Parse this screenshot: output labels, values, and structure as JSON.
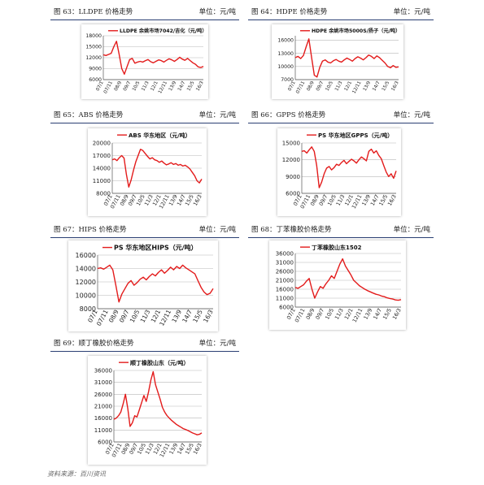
{
  "unit_label": "单位：元/吨",
  "source_note": "资料来源：百川资讯",
  "x_ticks": [
    "07/1",
    "07/11",
    "08/9",
    "09/7",
    "10/5",
    "11/3",
    "12/1",
    "12/11",
    "13/9",
    "14/7",
    "15/5",
    "16/3"
  ],
  "line_color": "#e31b1b",
  "figures": [
    {
      "id": "fig63",
      "caption": "图 63：LLDPE 价格走势",
      "unit": "单位：元/吨",
      "chart_data": {
        "type": "line",
        "title": "",
        "legend": "LLDPE 余姚市场7042/吉化（元/吨）",
        "ylim": [
          6000,
          18000
        ],
        "yticks": [
          6000,
          9000,
          12000,
          15000,
          18000
        ],
        "values": [
          12800,
          12600,
          12900,
          13200,
          15000,
          16500,
          13000,
          9000,
          7500,
          9500,
          11500,
          11800,
          10500,
          10800,
          11000,
          10800,
          11200,
          11500,
          10900,
          10600,
          11000,
          11400,
          11200,
          10800,
          11300,
          11700,
          11400,
          11000,
          11500,
          12100,
          11600,
          11300,
          11800,
          11200,
          10600,
          10200,
          9500,
          9300,
          9600
        ]
      }
    },
    {
      "id": "fig64",
      "caption": "图 64：HDPE 价格走势",
      "unit": "单位：元/吨",
      "chart_data": {
        "type": "line",
        "title": "",
        "legend": "HDPE 余姚市场5000S/扬子（元/吨）",
        "ylim": [
          7000,
          17000
        ],
        "yticks": [
          7000,
          10000,
          13000,
          16000
        ],
        "values": [
          12000,
          12300,
          11800,
          12500,
          14500,
          16300,
          12000,
          8000,
          7600,
          9800,
          11200,
          11500,
          11000,
          10800,
          11300,
          11600,
          11200,
          11000,
          11500,
          11900,
          11600,
          11200,
          11800,
          12200,
          11900,
          11500,
          12000,
          12600,
          12300,
          11800,
          12400,
          12000,
          11400,
          10800,
          10000,
          9700,
          10200,
          9800,
          9900
        ]
      }
    },
    {
      "id": "fig65",
      "caption": "图 65：ABS 价格走势",
      "unit": "单位：元/吨",
      "chart_data": {
        "type": "line",
        "title": "",
        "legend": "ABS 华东地区（元/吨）",
        "ylim": [
          8000,
          20000
        ],
        "yticks": [
          8000,
          11000,
          14000,
          17000,
          20000
        ],
        "values": [
          16000,
          16200,
          15800,
          16500,
          17000,
          16400,
          12500,
          9500,
          11200,
          13500,
          15500,
          17000,
          18500,
          18200,
          17500,
          16800,
          16200,
          16500,
          16000,
          15800,
          15400,
          15700,
          15200,
          14800,
          15000,
          15300,
          14900,
          15100,
          14700,
          14900,
          14500,
          14700,
          14300,
          13800,
          13000,
          12200,
          11000,
          10500,
          11400
        ]
      }
    },
    {
      "id": "fig66",
      "caption": "图 66：GPPS 价格走势",
      "unit": "单位：元/吨",
      "chart_data": {
        "type": "line",
        "title": "",
        "legend": "PS 华东地区GPPS（元/吨）",
        "ylim": [
          6000,
          15000
        ],
        "yticks": [
          6000,
          9000,
          12000,
          15000
        ],
        "values": [
          13500,
          13600,
          13200,
          13800,
          14300,
          13500,
          11000,
          7000,
          8000,
          9500,
          10500,
          10800,
          10200,
          10600,
          11200,
          11000,
          11500,
          11900,
          11300,
          11700,
          12100,
          11800,
          11400,
          12000,
          12500,
          12200,
          11800,
          13500,
          13900,
          13200,
          13600,
          12800,
          12200,
          11000,
          9800,
          9000,
          9500,
          8700,
          10000
        ]
      }
    },
    {
      "id": "fig67",
      "caption": "图 67：HIPS 价格走势",
      "unit": "单位：元/吨",
      "chart_data": {
        "type": "line",
        "title": "",
        "legend": "PS 华东地区HIPS（元/吨）",
        "ylim": [
          8000,
          16000
        ],
        "yticks": [
          8000,
          10000,
          12000,
          14000,
          16000
        ],
        "values": [
          14000,
          14100,
          13900,
          14200,
          14500,
          13800,
          11500,
          9000,
          10200,
          11000,
          11800,
          12200,
          11500,
          11900,
          12400,
          12700,
          12300,
          12800,
          13200,
          12900,
          13400,
          13800,
          13300,
          13700,
          14200,
          13800,
          14300,
          14000,
          14500,
          14100,
          13800,
          13500,
          13200,
          12200,
          11200,
          10500,
          10100,
          10300,
          11000
        ]
      }
    },
    {
      "id": "fig68",
      "caption": "图 68：丁苯橡胶价格走势",
      "unit": "单位：元/吨",
      "chart_data": {
        "type": "line",
        "title": "",
        "legend": "丁苯橡胶山东1502",
        "ylim": [
          6000,
          36000
        ],
        "yticks": [
          6000,
          11000,
          16000,
          21000,
          26000,
          31000,
          36000
        ],
        "values": [
          17000,
          16500,
          17500,
          18500,
          20500,
          22000,
          16000,
          11000,
          14500,
          17500,
          16500,
          19000,
          21000,
          23500,
          22000,
          26000,
          30000,
          33000,
          29000,
          26500,
          24000,
          21000,
          19500,
          18000,
          17000,
          16000,
          15200,
          14500,
          13800,
          13200,
          12800,
          12200,
          11800,
          11200,
          10800,
          10500,
          10000,
          9800,
          10200
        ]
      }
    },
    {
      "id": "fig69",
      "caption": "图 69：顺丁橡胶价格走势",
      "unit": "单位：元/吨",
      "chart_data": {
        "type": "line",
        "title": "",
        "legend": "顺丁橡胶山东（元/吨）",
        "ylim": [
          6000,
          36000
        ],
        "yticks": [
          6000,
          11000,
          16000,
          21000,
          26000,
          31000,
          36000
        ],
        "values": [
          15500,
          16000,
          17000,
          18500,
          22000,
          26000,
          20000,
          12500,
          14000,
          17000,
          16500,
          19500,
          22500,
          25500,
          23000,
          27000,
          32000,
          35500,
          30000,
          27000,
          24000,
          20500,
          18500,
          17000,
          16000,
          15000,
          14200,
          13400,
          12800,
          12200,
          11600,
          11200,
          10800,
          10300,
          9800,
          9400,
          9000,
          9200,
          9800
        ]
      }
    }
  ]
}
